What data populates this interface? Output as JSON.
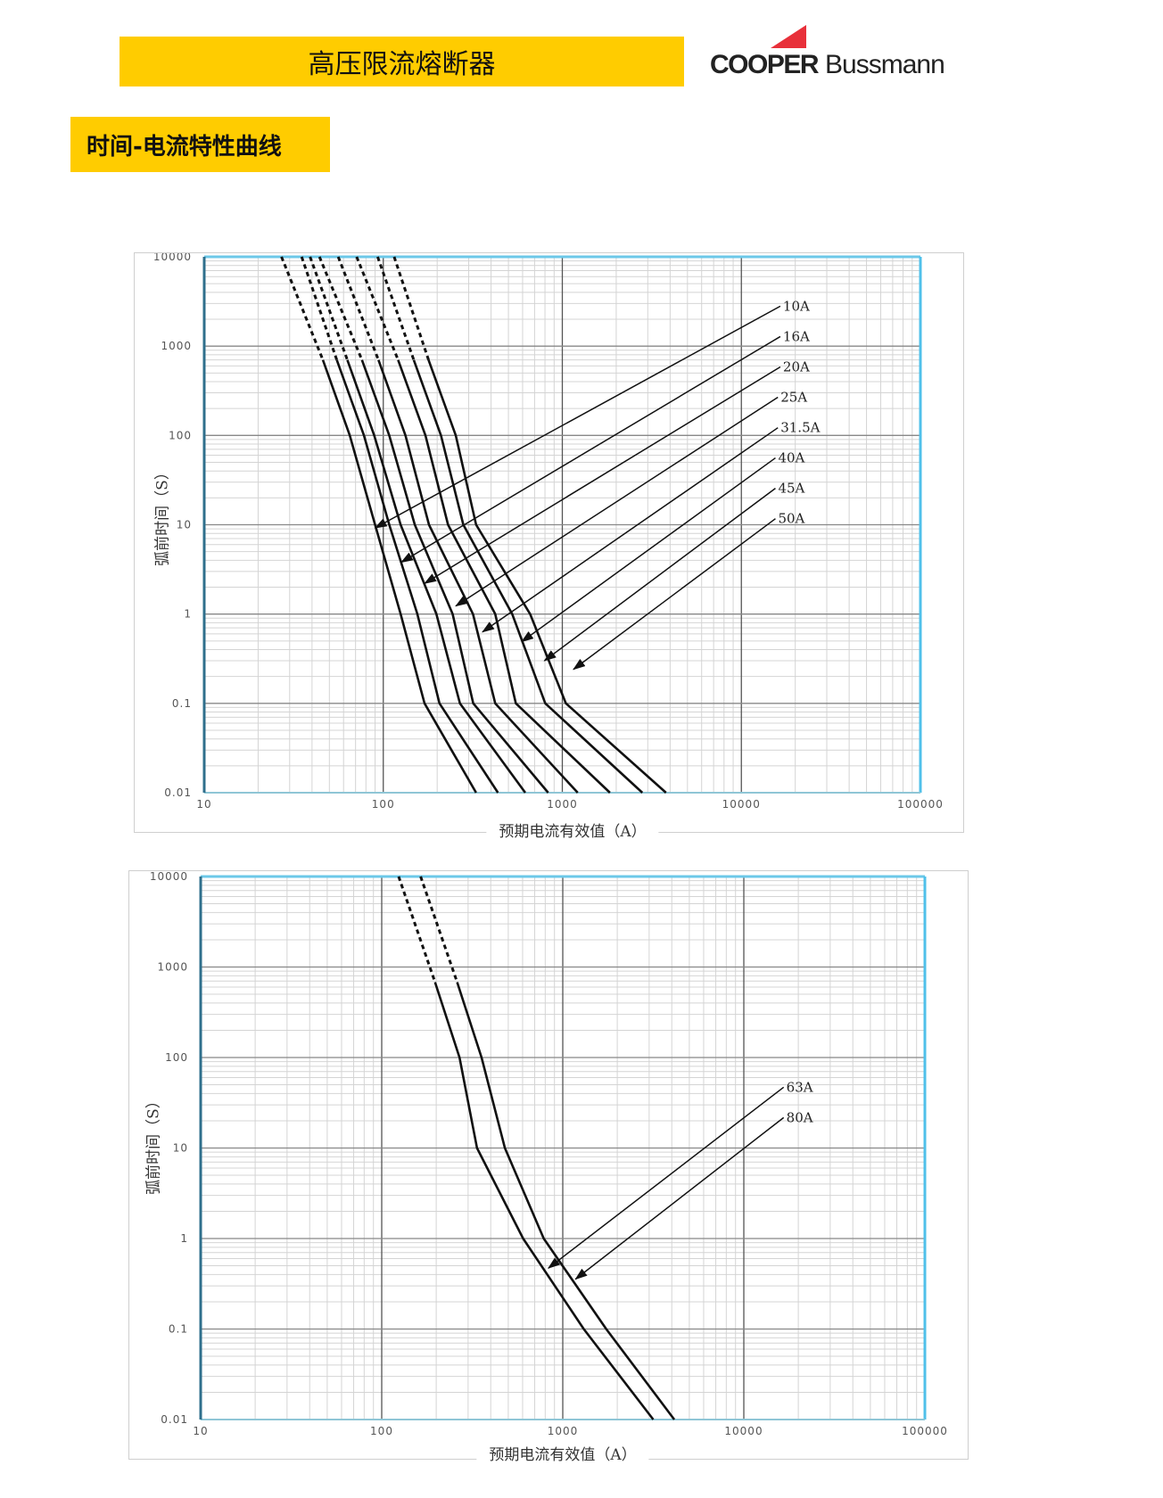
{
  "header": {
    "title": "高压限流熔断器",
    "logo_text_1": "COOPER",
    "logo_text_2": "Bussmann",
    "logo_color": "#e8303a",
    "section_title": "时间-电流特性曲线",
    "bar_color": "#ffcc00"
  },
  "chart_data": [
    {
      "type": "line",
      "x_scale": "log",
      "y_scale": "log",
      "xlim": [
        10,
        100000
      ],
      "ylim": [
        0.01,
        10000
      ],
      "xlabel": "预期电流有效值（A）",
      "ylabel": "弧前时间（S）",
      "x_ticks": [
        "10",
        "100",
        "1000",
        "10000",
        "100000"
      ],
      "y_ticks": [
        "10000",
        "1000",
        "100",
        "10",
        "1",
        "0.1",
        "0.01"
      ],
      "grid": true,
      "series": [
        {
          "name": "10A",
          "dashed": [
            [
              27,
              10000
            ],
            [
              46,
              700
            ]
          ],
          "points": [
            [
              46,
              700
            ],
            [
              65,
              100
            ],
            [
              90,
              10
            ],
            [
              125,
              1
            ],
            [
              170,
              0.1
            ],
            [
              330,
              0.01
            ]
          ]
        },
        {
          "name": "16A",
          "dashed": [
            [
              35,
              10000
            ],
            [
              55,
              700
            ]
          ],
          "points": [
            [
              55,
              700
            ],
            [
              78,
              100
            ],
            [
              108,
              10
            ],
            [
              155,
              1
            ],
            [
              206,
              0.1
            ],
            [
              437,
              0.01
            ]
          ]
        },
        {
          "name": "20A",
          "dashed": [
            [
              39,
              10000
            ],
            [
              63,
              700
            ]
          ],
          "points": [
            [
              63,
              700
            ],
            [
              89,
              100
            ],
            [
              125,
              10
            ],
            [
              198,
              1
            ],
            [
              268,
              0.1
            ],
            [
              621,
              0.01
            ]
          ]
        },
        {
          "name": "25A",
          "dashed": [
            [
              44,
              10000
            ],
            [
              76,
              700
            ]
          ],
          "points": [
            [
              76,
              700
            ],
            [
              108,
              100
            ],
            [
              150,
              10
            ],
            [
              244,
              1
            ],
            [
              318,
              0.1
            ],
            [
              834,
              0.01
            ]
          ]
        },
        {
          "name": "31.5A",
          "dashed": [
            [
              56,
              10000
            ],
            [
              94,
              700
            ]
          ],
          "points": [
            [
              94,
              700
            ],
            [
              133,
              100
            ],
            [
              180,
              10
            ],
            [
              317,
              1
            ],
            [
              422,
              0.1
            ],
            [
              1219,
              0.01
            ]
          ]
        },
        {
          "name": "40A",
          "dashed": [
            [
              71,
              10000
            ],
            [
              121,
              700
            ]
          ],
          "points": [
            [
              121,
              700
            ],
            [
              172,
              100
            ],
            [
              230,
              10
            ],
            [
              422,
              1
            ],
            [
              550,
              0.1
            ],
            [
              1845,
              0.01
            ]
          ]
        },
        {
          "name": "45A",
          "dashed": [
            [
              93,
              10000
            ],
            [
              148,
              700
            ]
          ],
          "points": [
            [
              148,
              700
            ],
            [
              210,
              100
            ],
            [
              280,
              10
            ],
            [
              525,
              1
            ],
            [
              803,
              0.1
            ],
            [
              2799,
              0.01
            ]
          ]
        },
        {
          "name": "50A",
          "dashed": [
            [
              115,
              10000
            ],
            [
              179,
              700
            ]
          ],
          "points": [
            [
              179,
              700
            ],
            [
              254,
              100
            ],
            [
              330,
              10
            ],
            [
              661,
              1
            ],
            [
              1047,
              0.1
            ],
            [
              3794,
              0.01
            ]
          ]
        }
      ],
      "annotations": [
        {
          "label": "10A",
          "from": [
            16500,
            2800
          ],
          "to": [
            90,
            9.2
          ]
        },
        {
          "label": "16A",
          "from": [
            16500,
            1280
          ],
          "to": [
            126,
            3.8
          ]
        },
        {
          "label": "20A",
          "from": [
            16500,
            585
          ],
          "to": [
            170,
            2.2
          ]
        },
        {
          "label": "25A",
          "from": [
            16000,
            268
          ],
          "to": [
            254,
            1.23
          ]
        },
        {
          "label": "31.5A",
          "from": [
            16000,
            122
          ],
          "to": [
            358,
            0.63
          ]
        },
        {
          "label": "40A",
          "from": [
            15500,
            56
          ],
          "to": [
            593,
            0.49
          ]
        },
        {
          "label": "45A",
          "from": [
            15500,
            25.6
          ],
          "to": [
            794,
            0.3
          ]
        },
        {
          "label": "50A",
          "from": [
            15500,
            11.7
          ],
          "to": [
            1153,
            0.24
          ]
        }
      ]
    },
    {
      "type": "line",
      "x_scale": "log",
      "y_scale": "log",
      "xlim": [
        10,
        100000
      ],
      "ylim": [
        0.01,
        10000
      ],
      "xlabel": "预期电流有效值（A）",
      "ylabel": "弧前时间（S）",
      "x_ticks": [
        "10",
        "100",
        "1000",
        "10000",
        "100000"
      ],
      "y_ticks": [
        "10000",
        "1000",
        "100",
        "10",
        "1",
        "0.1",
        "0.01"
      ],
      "grid": true,
      "series": [
        {
          "name": "63A",
          "dashed": [
            [
              124,
              10000
            ],
            [
              197,
              680
            ]
          ],
          "points": [
            [
              197,
              680
            ],
            [
              269,
              100
            ],
            [
              336,
              10
            ],
            [
              604,
              1
            ],
            [
              1306,
              0.1
            ],
            [
              3162,
              0.01
            ]
          ]
        },
        {
          "name": "80A",
          "dashed": [
            [
              164,
              10000
            ],
            [
              261,
              680
            ]
          ],
          "points": [
            [
              261,
              680
            ],
            [
              356,
              100
            ],
            [
              479,
              10
            ],
            [
              785,
              1
            ],
            [
              1738,
              0.1
            ],
            [
              4130,
              0.01
            ]
          ]
        }
      ],
      "annotations": [
        {
          "label": "63A",
          "from": [
            16600,
            47
          ],
          "to": [
            832,
            0.47
          ]
        },
        {
          "label": "80A",
          "from": [
            16600,
            21.7
          ],
          "to": [
            1175,
            0.355
          ]
        }
      ]
    }
  ]
}
